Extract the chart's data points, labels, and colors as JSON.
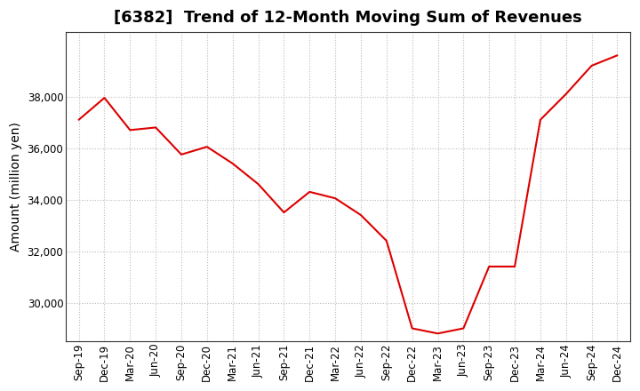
{
  "title": "[6382]  Trend of 12-Month Moving Sum of Revenues",
  "ylabel": "Amount (million yen)",
  "line_color": "#dd0000",
  "background_color": "#ffffff",
  "plot_bg_color": "#ffffff",
  "grid_color": "#bbbbbb",
  "x_labels": [
    "Sep-19",
    "Dec-19",
    "Mar-20",
    "Jun-20",
    "Sep-20",
    "Dec-20",
    "Mar-21",
    "Jun-21",
    "Sep-21",
    "Dec-21",
    "Mar-22",
    "Jun-22",
    "Sep-22",
    "Dec-22",
    "Mar-23",
    "Jun-23",
    "Sep-23",
    "Dec-23",
    "Mar-24",
    "Jun-24",
    "Sep-24",
    "Dec-24"
  ],
  "values": [
    37100,
    37950,
    36700,
    36800,
    35750,
    36050,
    35400,
    34600,
    33500,
    34300,
    34050,
    33400,
    32400,
    29000,
    28800,
    29000,
    31400,
    31400,
    37100,
    38100,
    39200,
    39600
  ],
  "ylim": [
    28500,
    40500
  ],
  "yticks": [
    30000,
    32000,
    34000,
    36000,
    38000
  ],
  "title_fontsize": 13,
  "axis_label_fontsize": 10,
  "tick_fontsize": 8.5
}
